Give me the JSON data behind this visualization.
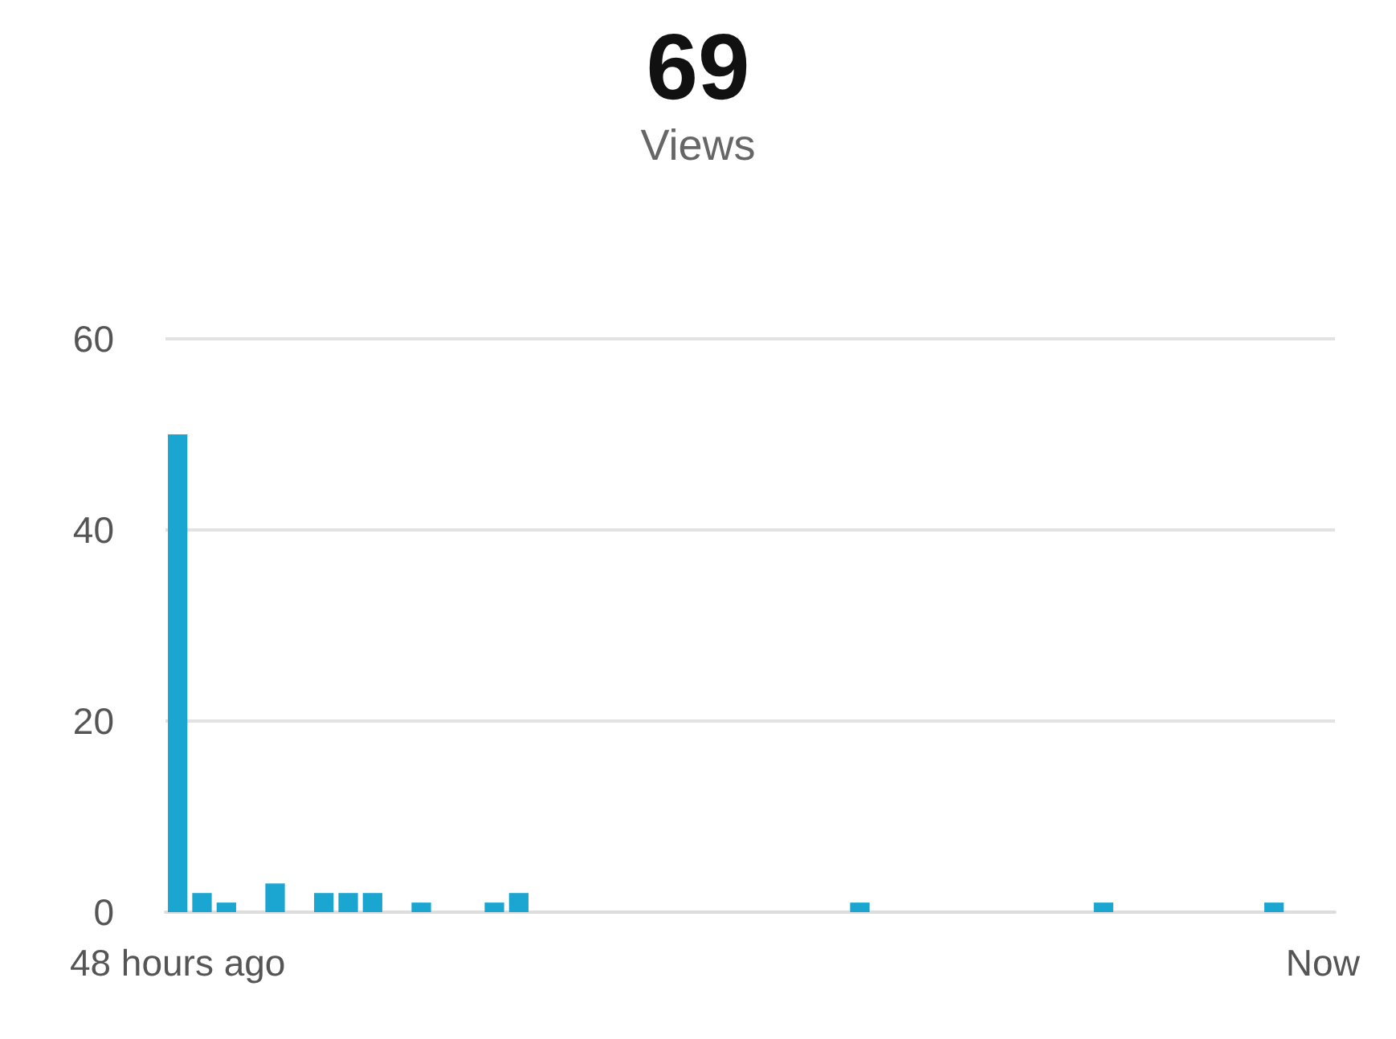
{
  "chart_data": {
    "type": "bar",
    "title": "69",
    "subtitle": "Views",
    "categories": [
      "48 hours ago",
      null,
      null,
      null,
      null,
      null,
      null,
      null,
      null,
      null,
      null,
      null,
      null,
      null,
      null,
      null,
      null,
      null,
      null,
      null,
      null,
      null,
      null,
      null,
      null,
      null,
      null,
      null,
      null,
      null,
      null,
      null,
      null,
      null,
      null,
      null,
      null,
      null,
      null,
      null,
      null,
      null,
      null,
      null,
      null,
      null,
      null,
      "Now"
    ],
    "values": [
      50,
      2,
      1,
      0,
      3,
      0,
      2,
      2,
      2,
      0,
      1,
      0,
      0,
      1,
      2,
      0,
      0,
      0,
      0,
      0,
      0,
      0,
      0,
      0,
      0,
      0,
      0,
      0,
      1,
      0,
      0,
      0,
      0,
      0,
      0,
      0,
      0,
      0,
      1,
      0,
      0,
      0,
      0,
      0,
      0,
      1,
      0,
      0
    ],
    "color": "#1ba6d1",
    "ylim": [
      0,
      60
    ],
    "yticks": [
      0,
      20,
      40,
      60
    ],
    "grid": "y"
  }
}
